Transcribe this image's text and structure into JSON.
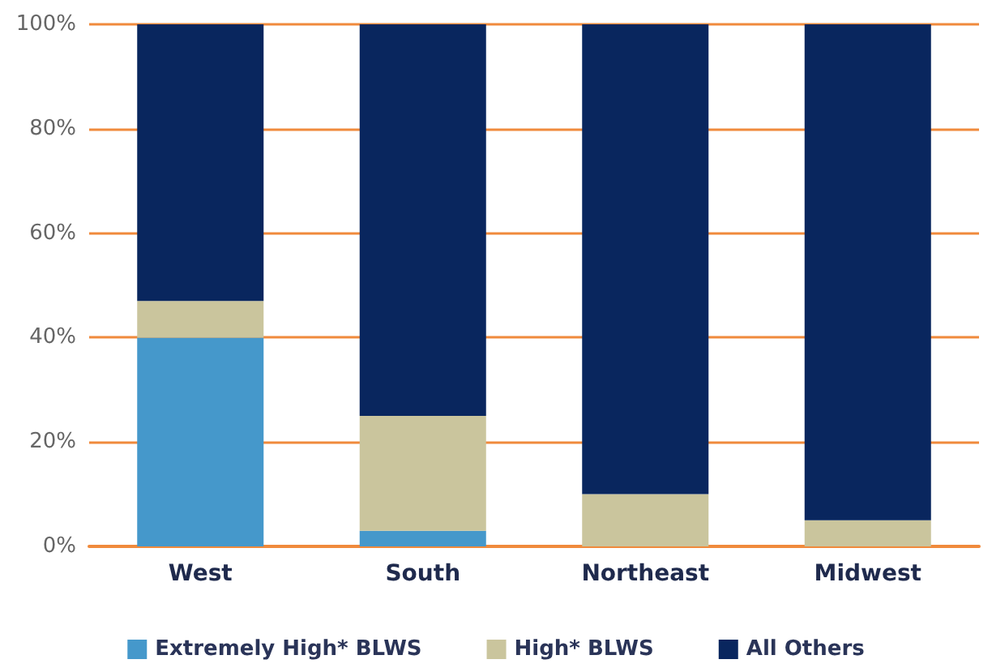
{
  "chart_data": {
    "type": "bar",
    "stacked": true,
    "categories": [
      "West",
      "South",
      "Northeast",
      "Midwest"
    ],
    "series": [
      {
        "name": "Extremely High* BLWS",
        "color": "#4598cb",
        "values": [
          40,
          3,
          0,
          0
        ]
      },
      {
        "name": "High* BLWS",
        "color": "#cac59d",
        "values": [
          7,
          22,
          10,
          5
        ]
      },
      {
        "name": "All Others",
        "color": "#09265e",
        "values": [
          53,
          75,
          90,
          95
        ]
      }
    ],
    "ylim": [
      0,
      100
    ],
    "yticks": [
      {
        "value": 0,
        "label": "0%"
      },
      {
        "value": 20,
        "label": "20%"
      },
      {
        "value": 40,
        "label": "40%"
      },
      {
        "value": 60,
        "label": "60%"
      },
      {
        "value": 80,
        "label": "80%"
      },
      {
        "value": 100,
        "label": "100%"
      }
    ],
    "grid": "y",
    "legend": "bottom"
  }
}
